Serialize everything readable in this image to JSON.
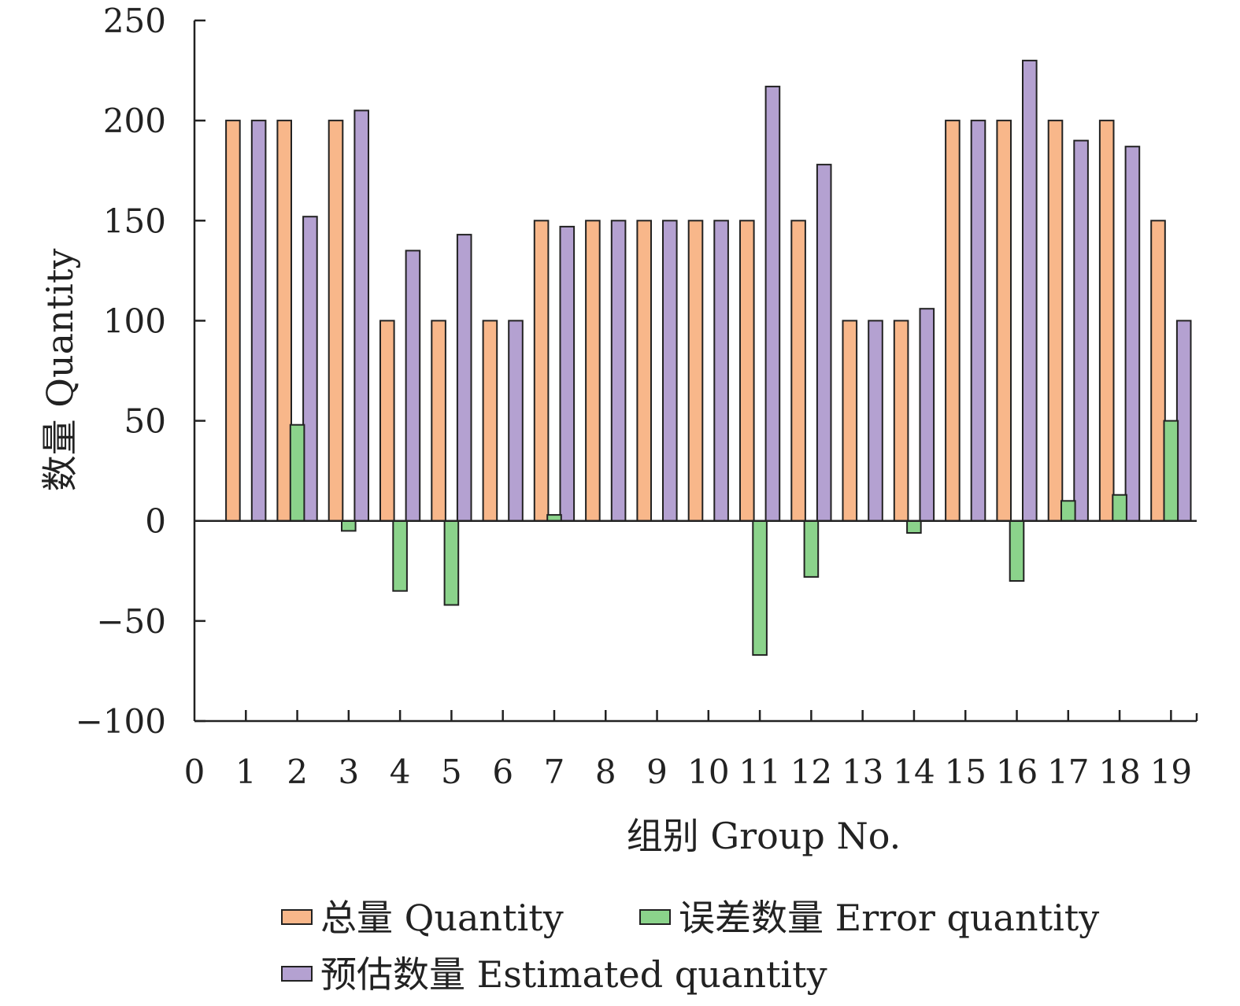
{
  "chart_data": {
    "type": "bar",
    "xlabel": "组别 Group No.",
    "ylabel": "数量 Quantity",
    "ylim": [
      -100,
      250
    ],
    "yticks": [
      -100,
      -50,
      0,
      50,
      100,
      150,
      200,
      250
    ],
    "xlim": [
      0,
      19.5
    ],
    "x_tick_labels": [
      "0",
      "1",
      "2",
      "3",
      "4",
      "5",
      "6",
      "7",
      "8",
      "9",
      "10",
      "11",
      "12",
      "13",
      "14",
      "15",
      "16",
      "17",
      "18",
      "19"
    ],
    "grid": false,
    "legend_position": "bottom",
    "series": [
      {
        "name": "总量 Quantity",
        "color": "#F8B78A",
        "x": [
          0.75,
          1.75,
          2.75,
          3.75,
          4.75,
          5.75,
          6.75,
          7.75,
          8.75,
          9.75,
          10.75,
          11.75,
          12.75,
          13.75,
          14.75,
          15.75,
          16.75,
          17.75,
          18.75
        ],
        "values": [
          200,
          200,
          200,
          100,
          100,
          100,
          150,
          150,
          150,
          150,
          150,
          150,
          100,
          100,
          200,
          200,
          200,
          200,
          150
        ]
      },
      {
        "name": "预估数量 Estimated quantity",
        "color": "#B4A1D1",
        "x": [
          1.25,
          2.25,
          3.25,
          4.25,
          5.25,
          6.25,
          7.25,
          8.25,
          9.25,
          10.25,
          11.25,
          12.25,
          13.25,
          14.25,
          15.25,
          16.25,
          17.25,
          18.25,
          19.25
        ],
        "values": [
          200,
          152,
          205,
          135,
          143,
          100,
          147,
          150,
          150,
          150,
          217,
          178,
          100,
          106,
          200,
          230,
          190,
          187,
          100
        ]
      },
      {
        "name": "误差数量 Error quantity",
        "color": "#8BD38B",
        "x": [
          2,
          3,
          4,
          5,
          7,
          11,
          12,
          14,
          16,
          17,
          18,
          19
        ],
        "values": [
          48,
          -5,
          -35,
          -42,
          3,
          -67,
          -28,
          -6,
          -30,
          10,
          13,
          50
        ]
      }
    ]
  }
}
